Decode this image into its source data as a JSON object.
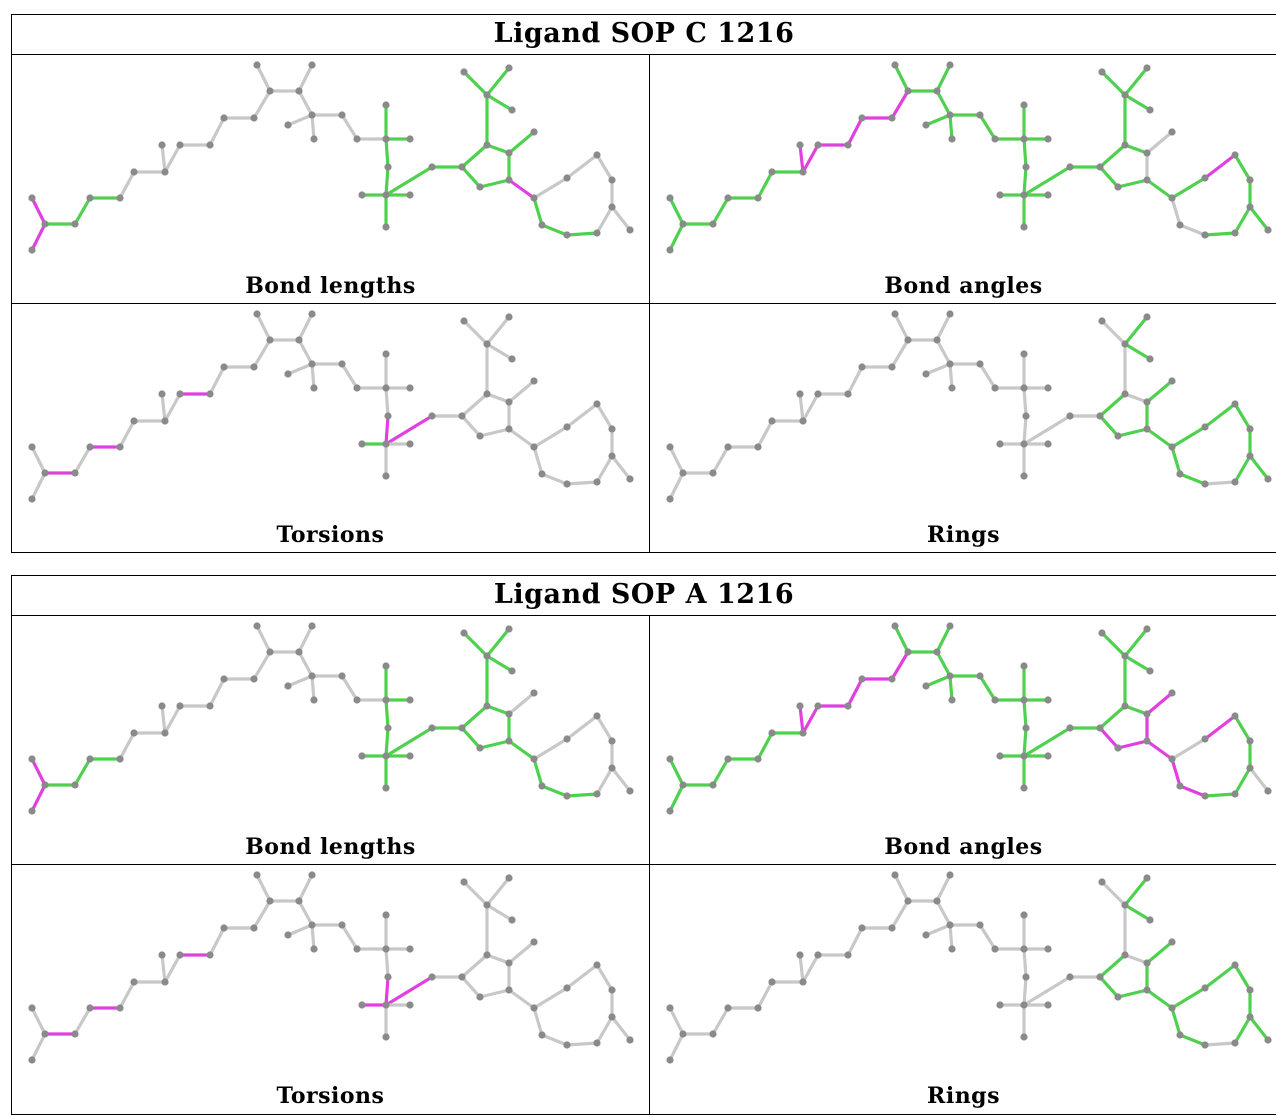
{
  "tables": [
    {
      "title": "Ligand SOP C 1216",
      "panels": [
        {
          "label": "Bond lengths",
          "pink": [
            "B1",
            "B2",
            "R11"
          ],
          "gray": [
            "B6",
            "B7",
            "B8",
            "B9",
            "B10",
            "B11",
            "B12",
            "B13",
            "B14",
            "B15",
            "B16",
            "B17",
            "B18",
            "B19",
            "B20",
            "B21",
            "B22",
            "R15",
            "R16",
            "R17",
            "R18",
            "R19",
            "R20"
          ]
        },
        {
          "label": "Bond angles",
          "pink": [
            "B8",
            "B9",
            "B10",
            "B11",
            "B12",
            "B13",
            "R18"
          ],
          "gray": [
            "R4",
            "R10",
            "R12",
            "R13"
          ]
        },
        {
          "label": "Torsions",
          "pink": [
            "B3",
            "B5",
            "B10",
            "B26",
            "B27"
          ],
          "gray": [
            "B1",
            "B2",
            "B4",
            "B6",
            "B7",
            "B8",
            "B9",
            "B11",
            "B12",
            "B13",
            "B14",
            "B15",
            "B16",
            "B17",
            "B18",
            "B19",
            "B20",
            "B21",
            "B22",
            "B23",
            "B24",
            "B25",
            "B29",
            "B30",
            "B31",
            "R1",
            "R2",
            "R3",
            "R4",
            "R5",
            "R6",
            "R7",
            "R8",
            "R9",
            "R10",
            "R11",
            "R12",
            "R13",
            "R14",
            "R15",
            "R16",
            "R17",
            "R18",
            "R19",
            "R20"
          ]
        },
        {
          "label": "Rings",
          "pink": [],
          "gray": [
            "B1",
            "B2",
            "B3",
            "B4",
            "B5",
            "B6",
            "B7",
            "B8",
            "B9",
            "B10",
            "B11",
            "B12",
            "B13",
            "B14",
            "B15",
            "B16",
            "B17",
            "B18",
            "B19",
            "B20",
            "B21",
            "B22",
            "B23",
            "B24",
            "B25",
            "B26",
            "B27",
            "B28",
            "B29",
            "B30",
            "B31",
            "R5",
            "R6",
            "R7",
            "R14"
          ]
        }
      ]
    },
    {
      "title": "Ligand SOP A 1216",
      "panels": [
        {
          "label": "Bond lengths",
          "pink": [
            "B1",
            "B2"
          ],
          "gray": [
            "B6",
            "B7",
            "B8",
            "B9",
            "B10",
            "B11",
            "B12",
            "B13",
            "B14",
            "B15",
            "B16",
            "B17",
            "B18",
            "B19",
            "B20",
            "B21",
            "B22",
            "R10",
            "R15",
            "R16",
            "R17",
            "R18",
            "R19",
            "R20"
          ]
        },
        {
          "label": "Bond angles",
          "pink": [
            "B8",
            "B9",
            "B10",
            "B11",
            "B12",
            "B13",
            "R2",
            "R3",
            "R4",
            "R10",
            "R11",
            "R12",
            "R13",
            "R18"
          ],
          "gray": [
            "R19",
            "R20"
          ]
        },
        {
          "label": "Torsions",
          "pink": [
            "B3",
            "B5",
            "B10",
            "B26",
            "B27",
            "B28"
          ],
          "gray": [
            "B1",
            "B2",
            "B4",
            "B6",
            "B7",
            "B8",
            "B9",
            "B11",
            "B12",
            "B13",
            "B14",
            "B15",
            "B16",
            "B17",
            "B18",
            "B19",
            "B20",
            "B21",
            "B22",
            "B23",
            "B24",
            "B25",
            "B29",
            "B30",
            "B31",
            "R1",
            "R2",
            "R3",
            "R4",
            "R5",
            "R6",
            "R7",
            "R8",
            "R9",
            "R10",
            "R11",
            "R12",
            "R13",
            "R14",
            "R15",
            "R16",
            "R17",
            "R18",
            "R19",
            "R20"
          ]
        },
        {
          "label": "Rings",
          "pink": [],
          "gray": [
            "B1",
            "B2",
            "B3",
            "B4",
            "B5",
            "B6",
            "B7",
            "B8",
            "B9",
            "B10",
            "B11",
            "B12",
            "B13",
            "B14",
            "B15",
            "B16",
            "B17",
            "B18",
            "B19",
            "B20",
            "B21",
            "B22",
            "B23",
            "B24",
            "B25",
            "B26",
            "B27",
            "B28",
            "B29",
            "B30",
            "B31",
            "R5",
            "R6",
            "R7",
            "R14"
          ]
        }
      ]
    }
  ],
  "colors": {
    "good": "#4fd04f",
    "outlier": "#e040e0",
    "neutral": "#c8c8c8",
    "atom": "#8a8a8a"
  }
}
